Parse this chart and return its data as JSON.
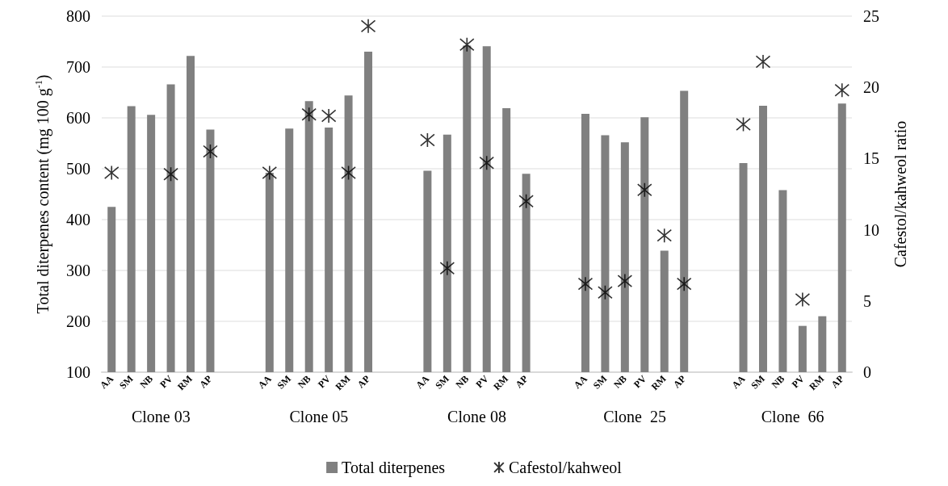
{
  "chart_data": {
    "type": "bar",
    "categories": [
      "AA",
      "SM",
      "NB",
      "PV",
      "RM",
      "AP",
      null,
      null,
      "AA",
      "SM",
      "NB",
      "PV",
      "RM",
      "AP",
      null,
      null,
      "AA",
      "SM",
      "NB",
      "PV",
      "RM",
      "AP",
      null,
      null,
      "AA",
      "SM",
      "NB",
      "PV",
      "RM",
      "AP",
      null,
      null,
      "AA",
      "SM",
      "NB",
      "PV",
      "RM",
      "AP"
    ],
    "series": [
      {
        "name": "Total diterpenes",
        "color": "#808080",
        "values": [
          425,
          623,
          606,
          666,
          722,
          577,
          null,
          null,
          492,
          579,
          633,
          581,
          644,
          730,
          null,
          null,
          496,
          567,
          742,
          741,
          619,
          490,
          null,
          null,
          608,
          566,
          552,
          601,
          339,
          653,
          null,
          null,
          511,
          624,
          458,
          191,
          210,
          628
        ]
      },
      {
        "name": "Cafestol/kahweol",
        "type": "scatter",
        "axis": "y2",
        "color": "#000000",
        "marker": "cross",
        "values": [
          14.0,
          null,
          null,
          13.9,
          null,
          15.5,
          null,
          null,
          14.0,
          null,
          18.1,
          18.0,
          14.0,
          24.3,
          null,
          null,
          16.3,
          7.3,
          23.0,
          14.7,
          null,
          12.0,
          null,
          null,
          6.2,
          5.6,
          6.4,
          12.8,
          9.6,
          6.2,
          null,
          null,
          17.4,
          21.8,
          null,
          5.1,
          null,
          19.8
        ]
      }
    ],
    "ylabel": "Total diterpenes content (mg 100 g$^{-1}$)",
    "y2label": "Cafestol/kahweol ratio",
    "ylim": [
      100,
      800
    ],
    "yticks": [
      100,
      200,
      300,
      400,
      500,
      600,
      700,
      800
    ],
    "y2lim": [
      0,
      25
    ],
    "y2ticks": [
      0,
      5,
      10,
      15,
      20,
      25
    ],
    "grid": "y",
    "legend": "bottom",
    "annotations": [
      "Clone 03",
      "Clone 05",
      "Clone 08",
      "Clone  25",
      "Clone  66"
    ]
  }
}
